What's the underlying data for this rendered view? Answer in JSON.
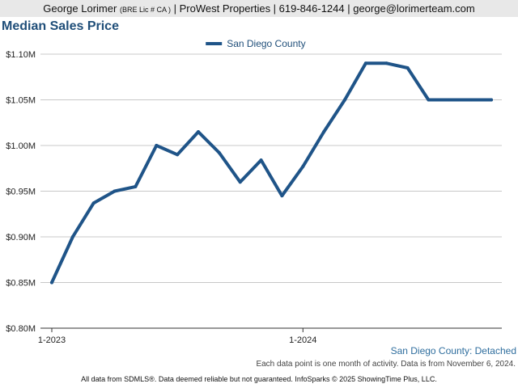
{
  "header": {
    "name": "George Lorimer",
    "license": "(BRE Lic # CA )",
    "rest": "| ProWest Properties | 619-846-1244 | george@lorimerteam.com"
  },
  "footer": {
    "series_label": "San Diego County: Detached",
    "note": "Each data point is one month of activity. Data is from November 6, 2024.",
    "disclaimer": "All data from SDMLS®. Data deemed reliable but not guaranteed. InfoSparks © 2025 ShowingTime Plus, LLC."
  },
  "colors": {
    "series": "#1f5488",
    "grid": "#c8c8c8",
    "title": "#1f4e79"
  },
  "chart_data": {
    "type": "line",
    "title": "Median Sales Price",
    "legend": {
      "position": "top-center"
    },
    "x": [
      "2023-01",
      "2023-02",
      "2023-03",
      "2023-04",
      "2023-05",
      "2023-06",
      "2023-07",
      "2023-08",
      "2023-09",
      "2023-10",
      "2023-11",
      "2023-12",
      "2024-01",
      "2024-02",
      "2024-03",
      "2024-04",
      "2024-05",
      "2024-06",
      "2024-07",
      "2024-08",
      "2024-09",
      "2024-10"
    ],
    "x_ticks": [
      {
        "x": "2023-01",
        "label": "1-2023"
      },
      {
        "x": "2024-01",
        "label": "1-2024"
      }
    ],
    "series": [
      {
        "name": "San Diego County",
        "values": [
          0.85,
          0.9,
          0.937,
          0.95,
          0.955,
          1.0,
          0.99,
          1.015,
          0.992,
          0.96,
          0.984,
          0.945,
          0.977,
          1.015,
          1.05,
          1.09,
          1.09,
          1.085,
          1.05,
          1.05,
          1.05,
          1.05
        ]
      }
    ],
    "y_ticks": [
      "$0.80M",
      "$0.85M",
      "$0.90M",
      "$0.95M",
      "$1.00M",
      "$1.05M",
      "$1.10M"
    ],
    "ylim": [
      0.8,
      1.1
    ],
    "grid": true
  }
}
